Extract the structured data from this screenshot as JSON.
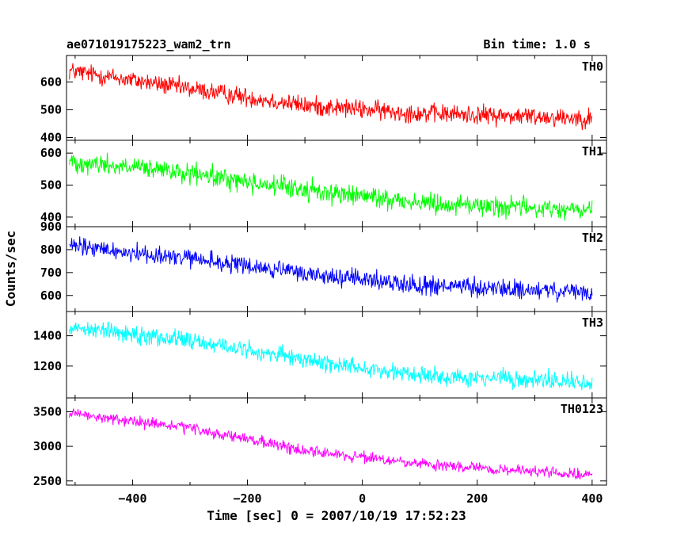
{
  "header": {
    "source_name": "ae071019175223_wam2_trn",
    "bin_time": "Bin time: 1.0 s"
  },
  "chart_data": {
    "type": "line",
    "title": "ae071019175223_wam2_trn",
    "subtitle": "Bin time: 1.0 s",
    "xlabel": "Time [sec] 0 = 2007/10/19 17:52:23",
    "ylabel": "Counts/sec",
    "xlim": [
      -515,
      425
    ],
    "x_ticks": [
      -400,
      -200,
      0,
      200,
      400
    ],
    "x_tick_labels": [
      "−400",
      "−200",
      "0",
      "200",
      "400"
    ],
    "bin_seconds": 1.0,
    "x_range": [
      -510,
      400
    ],
    "grid": false,
    "legend": "none",
    "panels": [
      {
        "name": "TH0",
        "color": "#ff0000",
        "ylim": [
          390,
          695
        ],
        "y_ticks": [
          400,
          500,
          600
        ],
        "trend": [
          [
            -510,
            640
          ],
          [
            -300,
            575
          ],
          [
            -100,
            515
          ],
          [
            100,
            487
          ],
          [
            400,
            470
          ]
        ],
        "noise_amplitude": 32
      },
      {
        "name": "TH1",
        "color": "#00ff00",
        "ylim": [
          370,
          640
        ],
        "y_ticks": [
          400,
          500,
          600
        ],
        "trend": [
          [
            -510,
            575
          ],
          [
            -300,
            535
          ],
          [
            -100,
            485
          ],
          [
            100,
            445
          ],
          [
            400,
            420
          ]
        ],
        "noise_amplitude": 30
      },
      {
        "name": "TH2",
        "color": "#0000ff",
        "ylim": [
          530,
          900
        ],
        "y_ticks": [
          600,
          700,
          800,
          900
        ],
        "trend": [
          [
            -510,
            815
          ],
          [
            -300,
            760
          ],
          [
            -100,
            695
          ],
          [
            100,
            645
          ],
          [
            400,
            610
          ]
        ],
        "noise_amplitude": 38
      },
      {
        "name": "TH3",
        "color": "#00ffff",
        "ylim": [
          990,
          1560
        ],
        "y_ticks": [
          1200,
          1400
        ],
        "trend": [
          [
            -510,
            1460
          ],
          [
            -300,
            1370
          ],
          [
            -100,
            1240
          ],
          [
            100,
            1140
          ],
          [
            400,
            1090
          ]
        ],
        "noise_amplitude": 55
      },
      {
        "name": "TH0123",
        "color": "#ff00ff",
        "ylim": [
          2440,
          3700
        ],
        "y_ticks": [
          2500,
          3000,
          3500
        ],
        "trend": [
          [
            -510,
            3470
          ],
          [
            -300,
            3260
          ],
          [
            -100,
            2940
          ],
          [
            100,
            2740
          ],
          [
            400,
            2580
          ]
        ],
        "noise_amplitude": 75
      }
    ]
  }
}
